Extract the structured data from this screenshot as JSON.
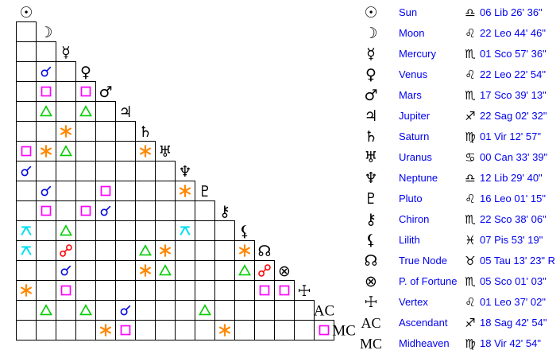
{
  "palette": {
    "background": "#ffffff",
    "grid_line": "#000000",
    "glyph_black": "#000000",
    "table_text_blue": "#0000f0"
  },
  "aspect_legend": {
    "conjunction": {
      "symbol": "☌",
      "color": "#0008e0"
    },
    "sextile": {
      "symbol": "⚹",
      "color": "#ff8800"
    },
    "square": {
      "symbol": "□",
      "color": "#ff00ff"
    },
    "trine": {
      "symbol": "△",
      "color": "#00cc00"
    },
    "opposition": {
      "symbol": "☍",
      "color": "#ff0000"
    },
    "quincunx": {
      "symbol": "⚻",
      "color": "#00dfee"
    }
  },
  "planets": [
    {
      "name": "Sun",
      "glyph": "☉",
      "glyph_type": "symbol",
      "sign": "Lib",
      "sign_glyph": "♎",
      "position": "06 Lib 26' 36\""
    },
    {
      "name": "Moon",
      "glyph": "☽",
      "glyph_type": "symbol",
      "sign": "Leo",
      "sign_glyph": "♌",
      "position": "22 Leo 44' 46\""
    },
    {
      "name": "Mercury",
      "glyph": "☿",
      "glyph_type": "symbol",
      "sign": "Sco",
      "sign_glyph": "♏",
      "position": "01 Sco 57' 36\""
    },
    {
      "name": "Venus",
      "glyph": "♀",
      "glyph_type": "symbol",
      "sign": "Leo",
      "sign_glyph": "♌",
      "position": "22 Leo 22' 54\""
    },
    {
      "name": "Mars",
      "glyph": "♂",
      "glyph_type": "symbol",
      "sign": "Sco",
      "sign_glyph": "♏",
      "position": "17 Sco 39' 13\""
    },
    {
      "name": "Jupiter",
      "glyph": "♃",
      "glyph_type": "symbol",
      "sign": "Sag",
      "sign_glyph": "♐",
      "position": "22 Sag 02' 32\""
    },
    {
      "name": "Saturn",
      "glyph": "♄",
      "glyph_type": "symbol",
      "sign": "Vir",
      "sign_glyph": "♍",
      "position": "01 Vir 12' 57\""
    },
    {
      "name": "Uranus",
      "glyph": "♅",
      "glyph_type": "symbol",
      "sign": "Can",
      "sign_glyph": "♋",
      "position": "00 Can 33' 39\""
    },
    {
      "name": "Neptune",
      "glyph": "♆",
      "glyph_type": "symbol",
      "sign": "Lib",
      "sign_glyph": "♎",
      "position": "12 Lib 29' 40\""
    },
    {
      "name": "Pluto",
      "glyph": "♇",
      "glyph_type": "symbol",
      "sign": "Leo",
      "sign_glyph": "♌",
      "position": "16 Leo 01' 15\""
    },
    {
      "name": "Chiron",
      "glyph": "⚷",
      "glyph_type": "symbol",
      "sign": "Sco",
      "sign_glyph": "♏",
      "position": "22 Sco 38' 06\""
    },
    {
      "name": "Lilith",
      "glyph": "⚸",
      "glyph_type": "symbol",
      "sign": "Pis",
      "sign_glyph": "♓",
      "position": "07 Pis 53' 19\""
    },
    {
      "name": "True Node",
      "glyph": "☊",
      "glyph_type": "symbol",
      "sign": "Tau",
      "sign_glyph": "♉",
      "position": "05 Tau 13' 23\" R"
    },
    {
      "name": "P. of Fortune",
      "glyph": "⊗",
      "glyph_type": "symbol",
      "sign": "Sco",
      "sign_glyph": "♏",
      "position": "05 Sco 01' 03\""
    },
    {
      "name": "Vertex",
      "glyph": "☩",
      "glyph_type": "symbol",
      "sign": "Leo",
      "sign_glyph": "♌",
      "position": "01 Leo 37' 02\""
    },
    {
      "name": "Ascendant",
      "glyph": "AC",
      "glyph_type": "text",
      "sign": "Sag",
      "sign_glyph": "♐",
      "position": "18 Sag 42' 54\""
    },
    {
      "name": "Midheaven",
      "glyph": "MC",
      "glyph_type": "text",
      "sign": "Vir",
      "sign_glyph": "♍",
      "position": "18 Vir 42' 54\""
    }
  ],
  "aspect_grid": {
    "rows": 17,
    "cell_size": 25,
    "note": "row/col indices reference planets[] order; cell (row,col) = aspect between those two points",
    "aspects": [
      {
        "row": 3,
        "col": 1,
        "type": "conjunction"
      },
      {
        "row": 4,
        "col": 1,
        "type": "square"
      },
      {
        "row": 4,
        "col": 3,
        "type": "square"
      },
      {
        "row": 5,
        "col": 1,
        "type": "trine"
      },
      {
        "row": 5,
        "col": 3,
        "type": "trine"
      },
      {
        "row": 6,
        "col": 2,
        "type": "sextile"
      },
      {
        "row": 7,
        "col": 0,
        "type": "square"
      },
      {
        "row": 7,
        "col": 1,
        "type": "sextile"
      },
      {
        "row": 7,
        "col": 2,
        "type": "trine"
      },
      {
        "row": 7,
        "col": 6,
        "type": "sextile"
      },
      {
        "row": 8,
        "col": 0,
        "type": "conjunction"
      },
      {
        "row": 9,
        "col": 1,
        "type": "conjunction"
      },
      {
        "row": 9,
        "col": 4,
        "type": "square"
      },
      {
        "row": 9,
        "col": 8,
        "type": "sextile"
      },
      {
        "row": 10,
        "col": 1,
        "type": "square"
      },
      {
        "row": 10,
        "col": 3,
        "type": "square"
      },
      {
        "row": 10,
        "col": 4,
        "type": "conjunction"
      },
      {
        "row": 11,
        "col": 0,
        "type": "quincunx"
      },
      {
        "row": 11,
        "col": 2,
        "type": "trine"
      },
      {
        "row": 11,
        "col": 8,
        "type": "quincunx"
      },
      {
        "row": 12,
        "col": 0,
        "type": "quincunx"
      },
      {
        "row": 12,
        "col": 2,
        "type": "opposition"
      },
      {
        "row": 12,
        "col": 6,
        "type": "trine"
      },
      {
        "row": 12,
        "col": 7,
        "type": "sextile"
      },
      {
        "row": 12,
        "col": 11,
        "type": "sextile"
      },
      {
        "row": 13,
        "col": 2,
        "type": "conjunction"
      },
      {
        "row": 13,
        "col": 6,
        "type": "sextile"
      },
      {
        "row": 13,
        "col": 7,
        "type": "trine"
      },
      {
        "row": 13,
        "col": 11,
        "type": "trine"
      },
      {
        "row": 13,
        "col": 12,
        "type": "opposition"
      },
      {
        "row": 14,
        "col": 0,
        "type": "sextile"
      },
      {
        "row": 14,
        "col": 2,
        "type": "square"
      },
      {
        "row": 14,
        "col": 12,
        "type": "square"
      },
      {
        "row": 14,
        "col": 13,
        "type": "square"
      },
      {
        "row": 15,
        "col": 1,
        "type": "trine"
      },
      {
        "row": 15,
        "col": 3,
        "type": "trine"
      },
      {
        "row": 15,
        "col": 5,
        "type": "conjunction"
      },
      {
        "row": 15,
        "col": 9,
        "type": "trine"
      },
      {
        "row": 16,
        "col": 4,
        "type": "sextile"
      },
      {
        "row": 16,
        "col": 5,
        "type": "square"
      },
      {
        "row": 16,
        "col": 10,
        "type": "sextile"
      },
      {
        "row": 16,
        "col": 15,
        "type": "square"
      }
    ]
  }
}
